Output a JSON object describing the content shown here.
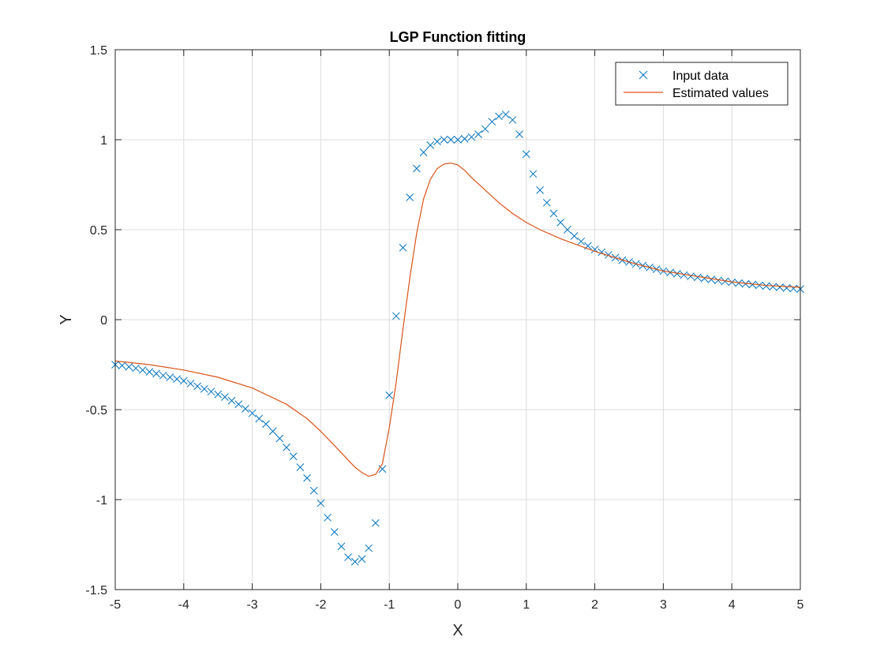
{
  "chart_data": {
    "type": "line",
    "title": "LGP Function fitting",
    "xlabel": "X",
    "ylabel": "Y",
    "xlim": [
      -5,
      5
    ],
    "ylim": [
      -1.5,
      1.5
    ],
    "xticks": [
      "-5",
      "-4",
      "-3",
      "-2",
      "-1",
      "0",
      "1",
      "2",
      "3",
      "4",
      "5"
    ],
    "yticks": [
      "-1.5",
      "-1",
      "-0.5",
      "0",
      "0.5",
      "1",
      "1.5"
    ],
    "grid": true,
    "legend_location": "top-right",
    "series": [
      {
        "name": "Input data",
        "kind": "scatter",
        "marker": "x",
        "color": "#0072BD",
        "x": [
          -5.0,
          -4.9,
          -4.8,
          -4.7,
          -4.6,
          -4.5,
          -4.4,
          -4.3,
          -4.2,
          -4.1,
          -4.0,
          -3.9,
          -3.8,
          -3.7,
          -3.6,
          -3.5,
          -3.4,
          -3.3,
          -3.2,
          -3.1,
          -3.0,
          -2.9,
          -2.8,
          -2.7,
          -2.6,
          -2.5,
          -2.4,
          -2.3,
          -2.2,
          -2.1,
          -2.0,
          -1.9,
          -1.8,
          -1.7,
          -1.6,
          -1.5,
          -1.4,
          -1.3,
          -1.2,
          -1.1,
          -1.0,
          -0.9,
          -0.8,
          -0.7,
          -0.6,
          -0.5,
          -0.4,
          -0.3,
          -0.2,
          -0.1,
          0.0,
          0.1,
          0.2,
          0.3,
          0.4,
          0.5,
          0.6,
          0.7,
          0.8,
          0.9,
          1.0,
          1.1,
          1.2,
          1.3,
          1.4,
          1.5,
          1.6,
          1.7,
          1.8,
          1.9,
          2.0,
          2.1,
          2.2,
          2.3,
          2.4,
          2.5,
          2.6,
          2.7,
          2.8,
          2.9,
          3.0,
          3.1,
          3.2,
          3.3,
          3.4,
          3.5,
          3.6,
          3.7,
          3.8,
          3.9,
          4.0,
          4.1,
          4.2,
          4.3,
          4.4,
          4.5,
          4.6,
          4.7,
          4.8,
          4.9,
          5.0
        ],
        "y": [
          -0.25,
          -0.255,
          -0.262,
          -0.27,
          -0.28,
          -0.29,
          -0.3,
          -0.31,
          -0.32,
          -0.33,
          -0.34,
          -0.355,
          -0.37,
          -0.385,
          -0.4,
          -0.415,
          -0.43,
          -0.45,
          -0.47,
          -0.495,
          -0.52,
          -0.55,
          -0.58,
          -0.62,
          -0.66,
          -0.71,
          -0.76,
          -0.82,
          -0.88,
          -0.95,
          -1.02,
          -1.1,
          -1.18,
          -1.26,
          -1.32,
          -1.345,
          -1.33,
          -1.27,
          -1.13,
          -0.83,
          -0.42,
          0.02,
          0.4,
          0.68,
          0.84,
          0.93,
          0.97,
          0.99,
          1.0,
          1.0,
          1.0,
          1.005,
          1.015,
          1.03,
          1.06,
          1.1,
          1.13,
          1.14,
          1.11,
          1.03,
          0.92,
          0.81,
          0.72,
          0.65,
          0.59,
          0.54,
          0.5,
          0.465,
          0.435,
          0.41,
          0.39,
          0.375,
          0.36,
          0.345,
          0.33,
          0.32,
          0.31,
          0.3,
          0.29,
          0.28,
          0.27,
          0.262,
          0.255,
          0.248,
          0.241,
          0.235,
          0.229,
          0.223,
          0.218,
          0.213,
          0.208,
          0.203,
          0.199,
          0.195,
          0.191,
          0.187,
          0.183,
          0.18,
          0.176,
          0.173,
          0.17
        ]
      },
      {
        "name": "Estimated values",
        "kind": "line",
        "color": "#D95319",
        "x": [
          -5.0,
          -4.5,
          -4.0,
          -3.5,
          -3.0,
          -2.5,
          -2.2,
          -2.0,
          -1.8,
          -1.6,
          -1.5,
          -1.4,
          -1.3,
          -1.2,
          -1.1,
          -1.0,
          -0.9,
          -0.8,
          -0.7,
          -0.6,
          -0.5,
          -0.4,
          -0.3,
          -0.2,
          -0.1,
          0.0,
          0.1,
          0.2,
          0.4,
          0.6,
          0.8,
          1.0,
          1.2,
          1.5,
          2.0,
          2.5,
          3.0,
          3.5,
          4.0,
          4.5,
          5.0
        ],
        "y": [
          -0.23,
          -0.25,
          -0.28,
          -0.32,
          -0.38,
          -0.47,
          -0.55,
          -0.62,
          -0.7,
          -0.78,
          -0.82,
          -0.85,
          -0.87,
          -0.86,
          -0.8,
          -0.6,
          -0.35,
          -0.05,
          0.23,
          0.48,
          0.67,
          0.78,
          0.84,
          0.865,
          0.87,
          0.86,
          0.83,
          0.79,
          0.72,
          0.65,
          0.59,
          0.54,
          0.5,
          0.45,
          0.38,
          0.32,
          0.27,
          0.24,
          0.21,
          0.19,
          0.18
        ]
      }
    ]
  }
}
